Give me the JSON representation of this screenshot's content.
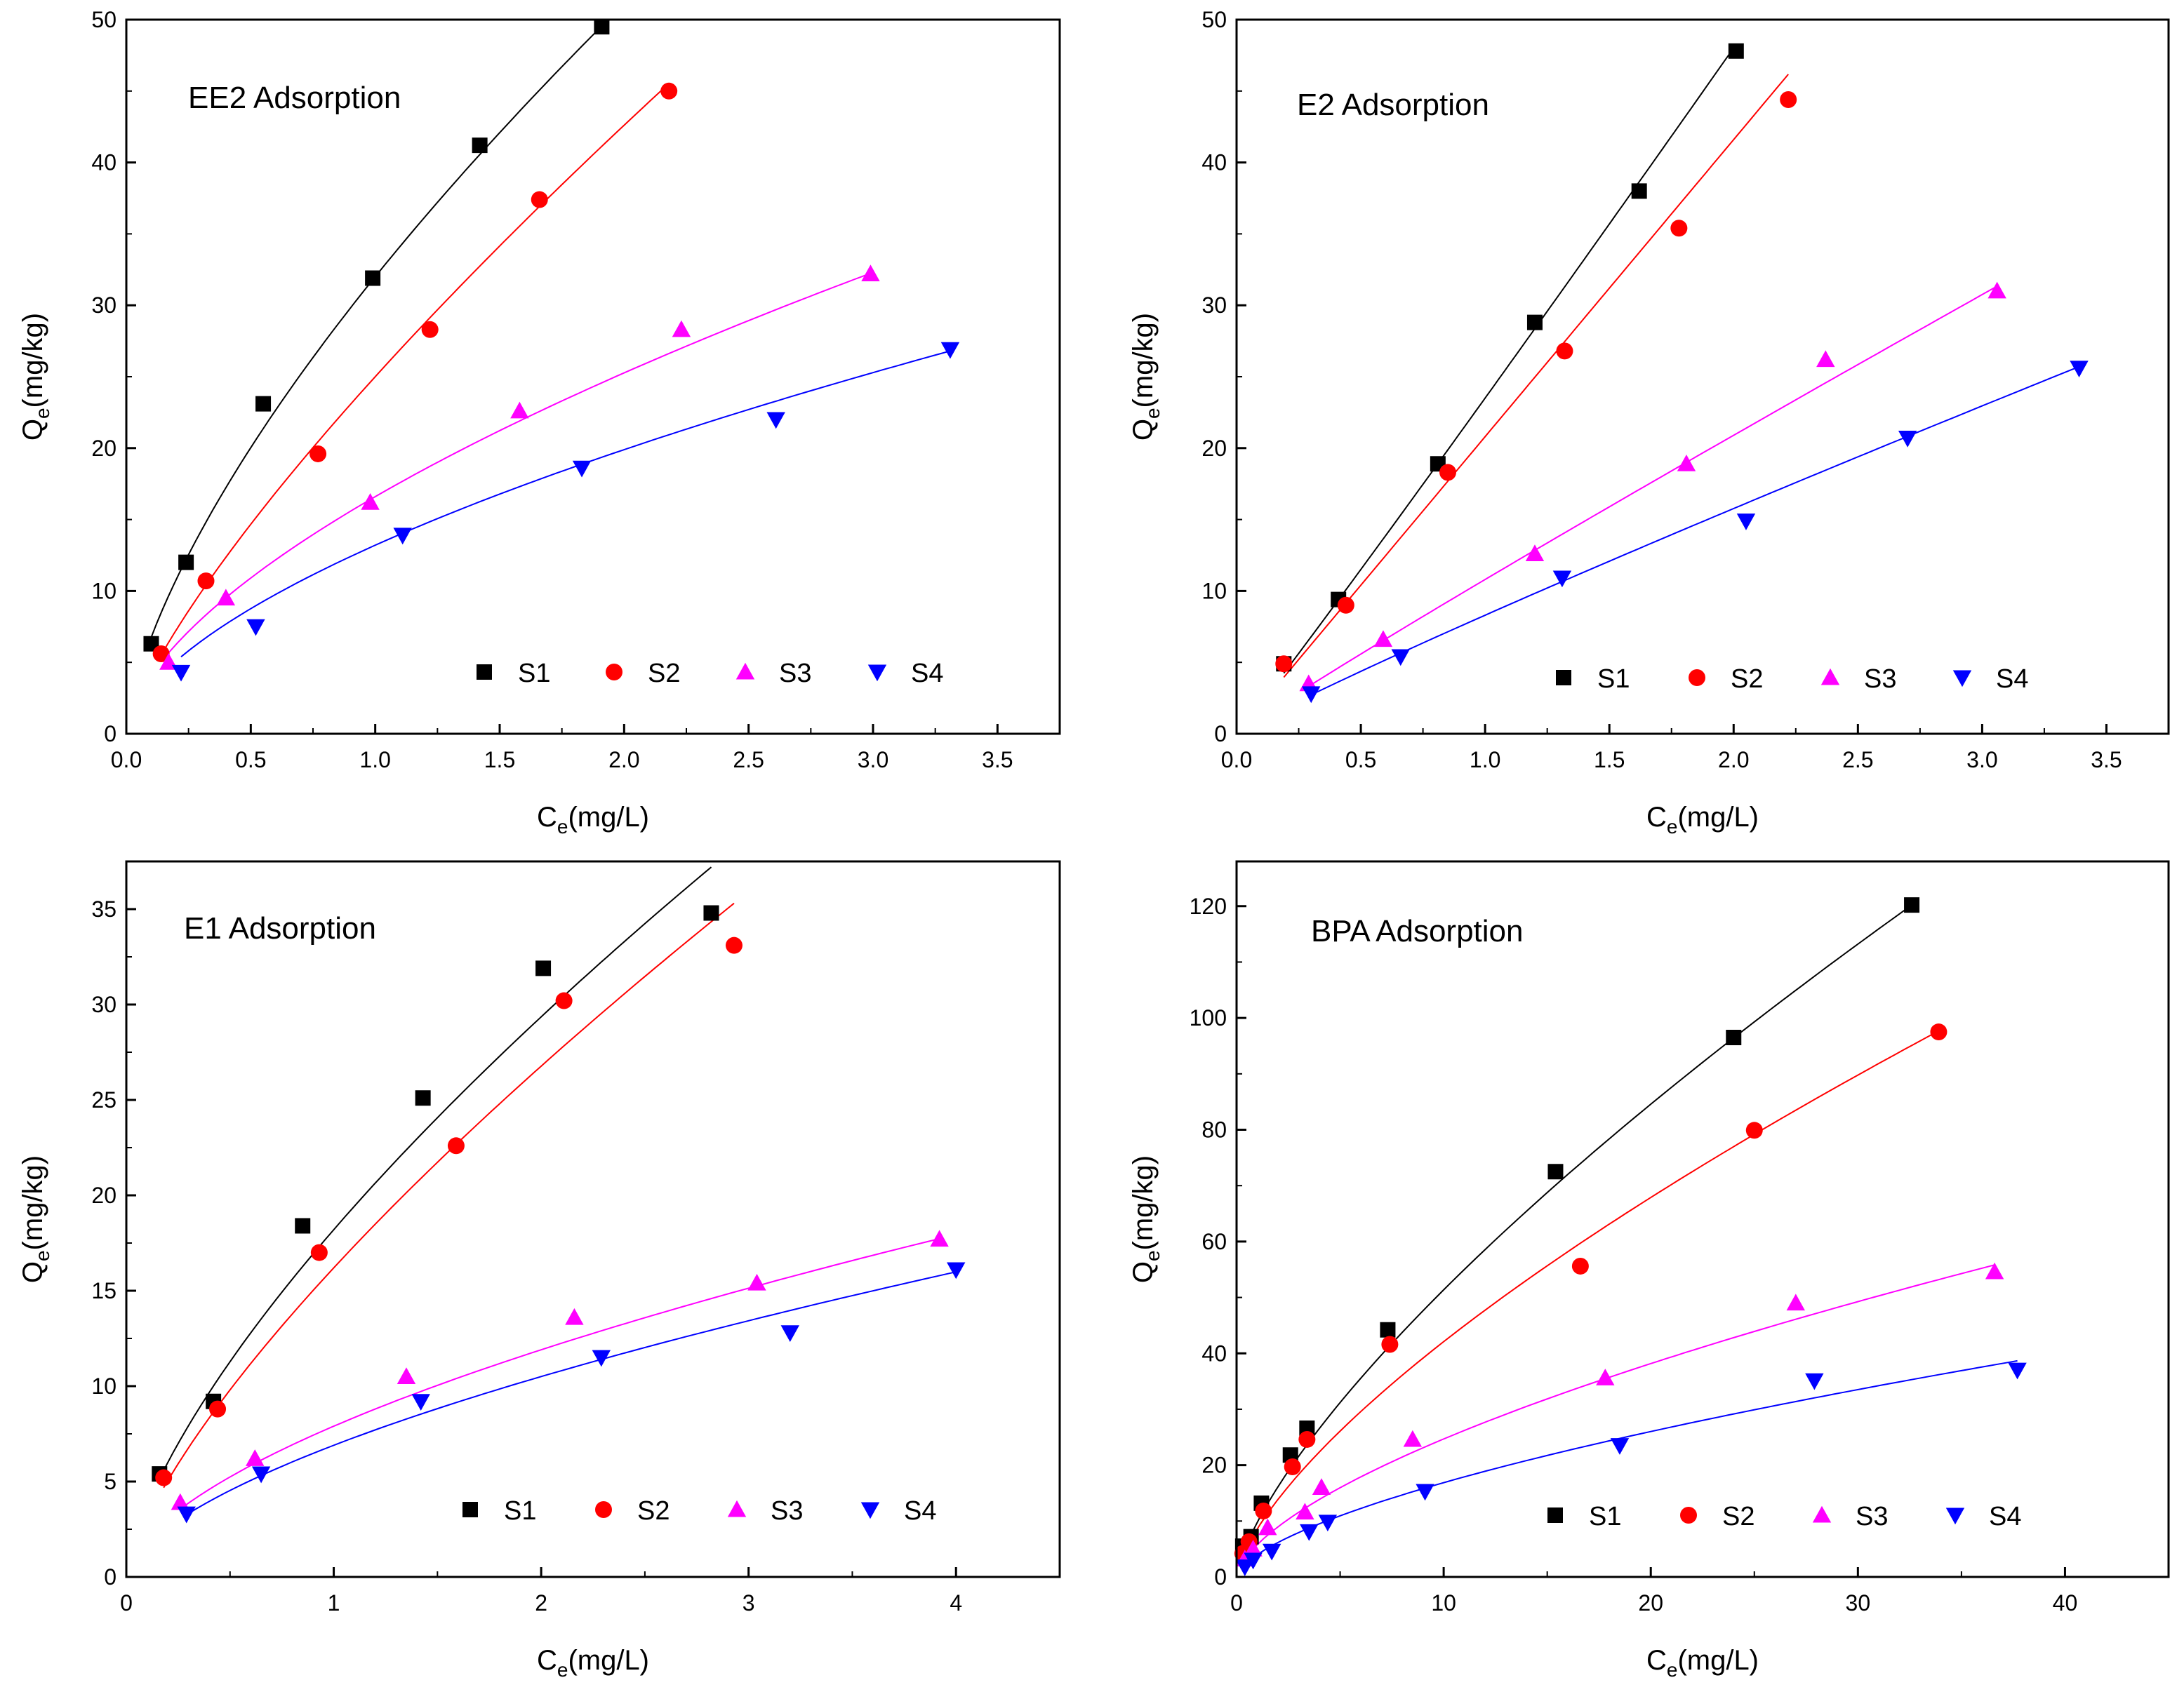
{
  "figure": {
    "description_free": true
  },
  "colors": {
    "S1": "#000000",
    "S2": "#ff0000",
    "S3": "#ff00ff",
    "S4": "#0000ff"
  },
  "chart_data": [
    {
      "type": "scatter",
      "title": "EE2 Adsorption",
      "xlabel_main": "C",
      "xlabel_sub": "e",
      "xlabel_unit": "(mg/L)",
      "ylabel_main": "Q",
      "ylabel_sub": "e",
      "ylabel_unit": "(mg/kg)",
      "xlim": [
        0,
        3.75
      ],
      "ylim": [
        0,
        50
      ],
      "xticks": [
        0.0,
        0.5,
        1.0,
        1.5,
        2.0,
        2.5,
        3.0,
        3.5
      ],
      "xtick_labels": [
        "0.0",
        "0.5",
        "1.0",
        "1.5",
        "2.0",
        "2.5",
        "3.0",
        "3.5"
      ],
      "yticks": [
        0,
        10,
        20,
        30,
        40,
        50
      ],
      "ytick_labels": [
        "0",
        "10",
        "20",
        "30",
        "40",
        "50"
      ],
      "legend": [
        "S1",
        "S2",
        "S3",
        "S4"
      ],
      "series": [
        {
          "name": "S1",
          "marker": "square",
          "fit": {
            "K": 32.0,
            "n": 1.48
          },
          "fit_range": [
            0.1,
            1.9
          ],
          "x": [
            0.1,
            0.24,
            0.55,
            0.99,
            1.42,
            1.91
          ],
          "y": [
            6.3,
            12.0,
            23.1,
            31.9,
            41.2,
            49.5
          ]
        },
        {
          "name": "S2",
          "marker": "circle",
          "fit": {
            "K": 25.0,
            "n": 1.3
          },
          "fit_range": [
            0.14,
            2.18
          ],
          "x": [
            0.14,
            0.32,
            0.77,
            1.22,
            1.66,
            2.18
          ],
          "y": [
            5.6,
            10.7,
            19.6,
            28.3,
            37.4,
            45.0
          ]
        },
        {
          "name": "S3",
          "marker": "triangle-up",
          "fit": {
            "K": 16.6,
            "n": 1.65
          },
          "fit_range": [
            0.17,
            2.99
          ],
          "x": [
            0.17,
            0.4,
            0.98,
            1.58,
            2.23,
            2.99
          ],
          "y": [
            5.0,
            9.5,
            16.2,
            22.6,
            28.3,
            32.2
          ]
        },
        {
          "name": "S4",
          "marker": "triangle-down",
          "fit": {
            "K": 13.2,
            "n": 1.69
          },
          "fit_range": [
            0.22,
            3.31
          ],
          "x": [
            0.22,
            0.52,
            1.11,
            1.83,
            2.61,
            3.31
          ],
          "y": [
            4.3,
            7.5,
            13.9,
            18.6,
            22.0,
            26.9
          ]
        }
      ]
    },
    {
      "type": "scatter",
      "title": "E2 Adsorption",
      "xlabel_main": "C",
      "xlabel_sub": "e",
      "xlabel_unit": "(mg/L)",
      "ylabel_main": "Q",
      "ylabel_sub": "e",
      "ylabel_unit": "(mg/kg)",
      "xlim": [
        0,
        3.75
      ],
      "ylim": [
        0,
        50
      ],
      "xticks": [
        0.0,
        0.5,
        1.0,
        1.5,
        2.0,
        2.5,
        3.0,
        3.5
      ],
      "xtick_labels": [
        "0.0",
        "0.5",
        "1.0",
        "1.5",
        "2.0",
        "2.5",
        "3.0",
        "3.5"
      ],
      "yticks": [
        0,
        10,
        20,
        30,
        40,
        50
      ],
      "ytick_labels": [
        "0",
        "10",
        "20",
        "30",
        "40",
        "50"
      ],
      "legend": [
        "S1",
        "S2",
        "S3",
        "S4"
      ],
      "series": [
        {
          "name": "S1",
          "marker": "square",
          "fit": {
            "K": 23.5,
            "n": 0.97
          },
          "fit_range": [
            0.19,
            2.01
          ],
          "x": [
            0.19,
            0.41,
            0.81,
            1.2,
            1.62,
            2.01
          ],
          "y": [
            4.9,
            9.4,
            18.9,
            28.8,
            38.0,
            47.8
          ]
        },
        {
          "name": "S2",
          "marker": "circle",
          "fit": {
            "K": 20.8,
            "n": 1.0
          },
          "fit_range": [
            0.19,
            2.22
          ],
          "x": [
            0.19,
            0.44,
            0.85,
            1.32,
            1.78,
            2.22
          ],
          "y": [
            4.9,
            9.0,
            18.3,
            26.8,
            35.4,
            44.4
          ]
        },
        {
          "name": "S3",
          "marker": "triangle-up",
          "fit": {
            "K": 10.8,
            "n": 1.05
          },
          "fit_range": [
            0.29,
            3.06
          ],
          "x": [
            0.29,
            0.59,
            1.2,
            1.81,
            2.37,
            3.06
          ],
          "y": [
            3.5,
            6.6,
            12.6,
            18.9,
            26.2,
            31.0
          ]
        },
        {
          "name": "S4",
          "marker": "triangle-down",
          "fit": {
            "K": 8.3,
            "n": 1.08
          },
          "fit_range": [
            0.3,
            3.39
          ],
          "x": [
            0.3,
            0.66,
            1.31,
            2.05,
            2.7,
            3.39
          ],
          "y": [
            2.8,
            5.4,
            10.9,
            14.9,
            20.7,
            25.6
          ]
        }
      ]
    },
    {
      "type": "scatter",
      "title": "E1 Adsorption",
      "xlabel_main": "C",
      "xlabel_sub": "e",
      "xlabel_unit": "(mg/L)",
      "ylabel_main": "Q",
      "ylabel_sub": "e",
      "ylabel_unit": "(mg/kg)",
      "xlim": [
        0,
        4.5
      ],
      "ylim": [
        0,
        37.5
      ],
      "xticks": [
        0,
        1,
        2,
        3,
        4
      ],
      "xtick_labels": [
        "0",
        "1",
        "2",
        "3",
        "4"
      ],
      "yticks": [
        0,
        5,
        10,
        15,
        20,
        25,
        30,
        35
      ],
      "ytick_labels": [
        "0",
        "5",
        "10",
        "15",
        "20",
        "25",
        "30",
        "35"
      ],
      "legend": [
        "S1",
        "S2",
        "S3",
        "S4"
      ],
      "series": [
        {
          "name": "S1",
          "marker": "square",
          "fit": {
            "K": 18.2,
            "n": 1.45
          },
          "fit_range": [
            0.16,
            2.82
          ],
          "x": [
            0.16,
            0.42,
            0.85,
            1.43,
            2.01,
            2.82
          ],
          "y": [
            5.4,
            9.2,
            18.4,
            25.1,
            31.9,
            34.8
          ]
        },
        {
          "name": "S2",
          "marker": "circle",
          "fit": {
            "K": 16.2,
            "n": 1.38
          },
          "fit_range": [
            0.18,
            2.93
          ],
          "x": [
            0.18,
            0.44,
            0.93,
            1.59,
            2.11,
            2.93
          ],
          "y": [
            5.2,
            8.8,
            17.0,
            22.6,
            30.2,
            33.1
          ]
        },
        {
          "name": "S3",
          "marker": "triangle-up",
          "fit": {
            "K": 7.9,
            "n": 1.69
          },
          "fit_range": [
            0.26,
            3.92
          ],
          "x": [
            0.26,
            0.62,
            1.35,
            2.16,
            3.04,
            3.92
          ],
          "y": [
            3.9,
            6.2,
            10.5,
            13.6,
            15.4,
            17.7
          ]
        },
        {
          "name": "S4",
          "marker": "triangle-down",
          "fit": {
            "K": 6.9,
            "n": 1.65
          },
          "fit_range": [
            0.29,
            4.0
          ],
          "x": [
            0.29,
            0.65,
            1.42,
            2.29,
            3.2,
            4.0
          ],
          "y": [
            3.3,
            5.4,
            9.2,
            11.5,
            12.8,
            16.1
          ]
        }
      ]
    },
    {
      "type": "scatter",
      "title": "BPA Adsorption",
      "xlabel_main": "C",
      "xlabel_sub": "e",
      "xlabel_unit": "(mg/L)",
      "ylabel_main": "Q",
      "ylabel_sub": "e",
      "ylabel_unit": "(mg/kg)",
      "xlim": [
        0,
        45
      ],
      "ylim": [
        0,
        128
      ],
      "xticks": [
        0,
        10,
        20,
        30,
        40
      ],
      "xtick_labels": [
        "0",
        "10",
        "20",
        "30",
        "40"
      ],
      "yticks": [
        0,
        20,
        40,
        60,
        80,
        100,
        120
      ],
      "ytick_labels": [
        "0",
        "20",
        "40",
        "60",
        "80",
        "100",
        "120"
      ],
      "legend": [
        "S1",
        "S2",
        "S3",
        "S4"
      ],
      "series": [
        {
          "name": "S1",
          "marker": "square",
          "fit": {
            "K": 9.8,
            "n": 1.39
          },
          "fit_range": [
            0.3,
            32.6
          ],
          "x": [
            0.3,
            0.7,
            1.2,
            2.6,
            3.4,
            7.3,
            15.4,
            24.0,
            32.6
          ],
          "y": [
            5.5,
            7.2,
            13.2,
            21.8,
            26.6,
            44.2,
            72.5,
            96.5,
            120.2
          ]
        },
        {
          "name": "S2",
          "marker": "circle",
          "fit": {
            "K": 8.6,
            "n": 1.45
          },
          "fit_range": [
            0.3,
            33.9
          ],
          "x": [
            0.3,
            0.6,
            1.3,
            2.7,
            3.4,
            7.4,
            16.6,
            25.0,
            33.9
          ],
          "y": [
            4.2,
            6.3,
            11.8,
            19.7,
            24.6,
            41.6,
            55.6,
            79.9,
            97.5
          ]
        },
        {
          "name": "S3",
          "marker": "triangle-up",
          "fit": {
            "K": 5.8,
            "n": 1.59
          },
          "fit_range": [
            0.4,
            36.6
          ],
          "x": [
            0.4,
            0.8,
            1.5,
            3.3,
            4.1,
            8.5,
            17.8,
            27.0,
            36.6
          ],
          "y": [
            3.2,
            5.0,
            8.8,
            11.6,
            16.0,
            24.6,
            35.6,
            49.0,
            54.6
          ]
        },
        {
          "name": "S4",
          "marker": "triangle-down",
          "fit": {
            "K": 4.0,
            "n": 1.6
          },
          "fit_range": [
            0.4,
            37.7
          ],
          "x": [
            0.4,
            0.8,
            1.7,
            3.5,
            4.4,
            9.1,
            18.5,
            27.9,
            37.7
          ],
          "y": [
            1.8,
            3.0,
            4.6,
            8.1,
            9.8,
            15.3,
            23.5,
            35.1,
            37.0
          ]
        }
      ]
    }
  ]
}
